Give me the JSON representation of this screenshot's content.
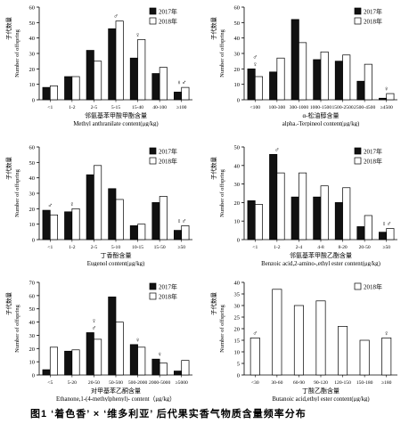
{
  "figure": {
    "caption": "图1  ‘着色香’ × ‘维多利亚’ 后代果实香气物质含量频率分布"
  },
  "chart_data": [
    {
      "type": "bar",
      "ylabel_cn": "子代数量",
      "ylabel": "Number of offspring",
      "xlabel_cn": "邻氨基苯甲酸甲酯含量",
      "xlabel": "Methyl anthranilate content(μg/kg)",
      "categories": [
        "<1",
        "1-2",
        "2-5",
        "5-15",
        "15-40",
        "40-100",
        "≥100"
      ],
      "ylim": [
        0,
        60
      ],
      "yticks": [
        0,
        10,
        20,
        30,
        40,
        50,
        60
      ],
      "legend_position": "top-right",
      "series": [
        {
          "name": "2017年",
          "values": [
            8,
            15,
            32,
            46,
            27,
            17,
            5
          ]
        },
        {
          "name": "2018年",
          "values": [
            9,
            15,
            25,
            51,
            39,
            21,
            8
          ]
        }
      ],
      "annotations": [
        {
          "category": "5-15",
          "symbol": "♂"
        },
        {
          "category": "15-40",
          "symbol": "♀"
        },
        {
          "category": "≥100",
          "symbol": "♀♂"
        }
      ]
    },
    {
      "type": "bar",
      "ylabel_cn": "子代数量",
      "ylabel": "Number of offspring",
      "xlabel_cn": "α-松油醇含量",
      "xlabel": "alpha.-Terpineol content(μg/kg)",
      "categories": [
        "<100",
        "100-300",
        "300-1000",
        "1000-1500",
        "1500-2500",
        "2500-4500",
        "≥4500"
      ],
      "ylim": [
        0,
        60
      ],
      "yticks": [
        0,
        10,
        20,
        30,
        40,
        50,
        60
      ],
      "legend_position": "top-right",
      "series": [
        {
          "name": "2017年",
          "values": [
            20,
            18,
            52,
            26,
            25,
            12,
            1
          ]
        },
        {
          "name": "2018年",
          "values": [
            15,
            27,
            37,
            31,
            29,
            23,
            4
          ]
        }
      ],
      "annotations": [
        {
          "category": "<100",
          "symbol": "♀"
        },
        {
          "category": "<100",
          "symbol": "♂"
        },
        {
          "category": "≥4500",
          "symbol": "♀"
        }
      ]
    },
    {
      "type": "bar",
      "ylabel_cn": "子代数量",
      "ylabel": "Number of offspring",
      "xlabel_cn": "丁香酚含量",
      "xlabel": "Eugenol content(μg/kg)",
      "categories": [
        "<1",
        "1-2",
        "2-5",
        "5-10",
        "10-15",
        "15-50",
        "≥50"
      ],
      "ylim": [
        0,
        60
      ],
      "yticks": [
        0,
        10,
        20,
        30,
        40,
        50,
        60
      ],
      "legend_position": "top-right",
      "series": [
        {
          "name": "2017年",
          "values": [
            19,
            18,
            42,
            33,
            9,
            24,
            6
          ]
        },
        {
          "name": "2018年",
          "values": [
            16,
            20,
            48,
            26,
            10,
            28,
            9
          ]
        }
      ],
      "annotations": [
        {
          "category": "<1",
          "symbol": "♂"
        },
        {
          "category": "1-2",
          "symbol": "♀"
        },
        {
          "category": "≥50",
          "symbol": "♀♂"
        }
      ]
    },
    {
      "type": "bar",
      "ylabel_cn": "子代数量",
      "ylabel": "Number of offspring",
      "xlabel_cn": "邻氨基苯甲酸乙酯含量",
      "xlabel": "Benzoic acid,2-amino-,ethyl ester content(μg/kg)",
      "categories": [
        "<1",
        "1-2",
        "2-4",
        "4-8",
        "8-20",
        "20-50",
        "≥50"
      ],
      "ylim": [
        0,
        50
      ],
      "yticks": [
        0,
        10,
        20,
        30,
        40,
        50
      ],
      "legend_position": "top-right",
      "series": [
        {
          "name": "2017年",
          "values": [
            21,
            46,
            23,
            23,
            20,
            7,
            4
          ]
        },
        {
          "name": "2018年",
          "values": [
            19,
            36,
            36,
            29,
            28,
            13,
            6
          ]
        }
      ],
      "annotations": [
        {
          "category": "1-2",
          "symbol": "♂"
        },
        {
          "category": "≥50",
          "symbol": "♀♂"
        }
      ]
    },
    {
      "type": "bar",
      "ylabel_cn": "子代数量",
      "ylabel": "Number of offspring",
      "xlabel_cn": "对甲基苯乙酮含量",
      "xlabel": "Ethanone,1-(4-methylphenyl)- content（μg/kg）",
      "categories": [
        "<5",
        "5-20",
        "20-50",
        "50-500",
        "500-2000",
        "2000-5000",
        "≥5000"
      ],
      "ylim": [
        0,
        70
      ],
      "yticks": [
        0,
        10,
        20,
        30,
        40,
        50,
        60,
        70
      ],
      "legend_position": "top-right",
      "series": [
        {
          "name": "2017年",
          "values": [
            4,
            18,
            32,
            59,
            23,
            12,
            3
          ]
        },
        {
          "name": "2018年",
          "values": [
            21,
            19,
            27,
            40,
            21,
            9,
            11
          ]
        }
      ],
      "annotations": [
        {
          "category": "20-50",
          "symbol": "♂"
        },
        {
          "category": "20-50",
          "symbol": "♀"
        },
        {
          "category": "500-2000",
          "symbol": "♀"
        },
        {
          "category": "2000-5000",
          "symbol": "♀"
        }
      ]
    },
    {
      "type": "bar",
      "ylabel_cn": "子代数量",
      "ylabel": "Number of offspring",
      "xlabel_cn": "丁酸乙酯含量",
      "xlabel": "Butanoic acid,ethyl ester content(μg/kg)",
      "categories": [
        "<30",
        "30-60",
        "60-90",
        "90-120",
        "120-150",
        "150-180",
        "≥180"
      ],
      "ylim": [
        0,
        40
      ],
      "yticks": [
        0,
        5,
        10,
        15,
        20,
        25,
        30,
        35,
        40
      ],
      "legend_position": "top-right",
      "series": [
        {
          "name": "2018年",
          "values": [
            16,
            37,
            30,
            32,
            21,
            15,
            16
          ]
        }
      ],
      "annotations": [
        {
          "category": "<30",
          "symbol": "♂"
        },
        {
          "category": "≥180",
          "symbol": "♀"
        }
      ]
    }
  ]
}
